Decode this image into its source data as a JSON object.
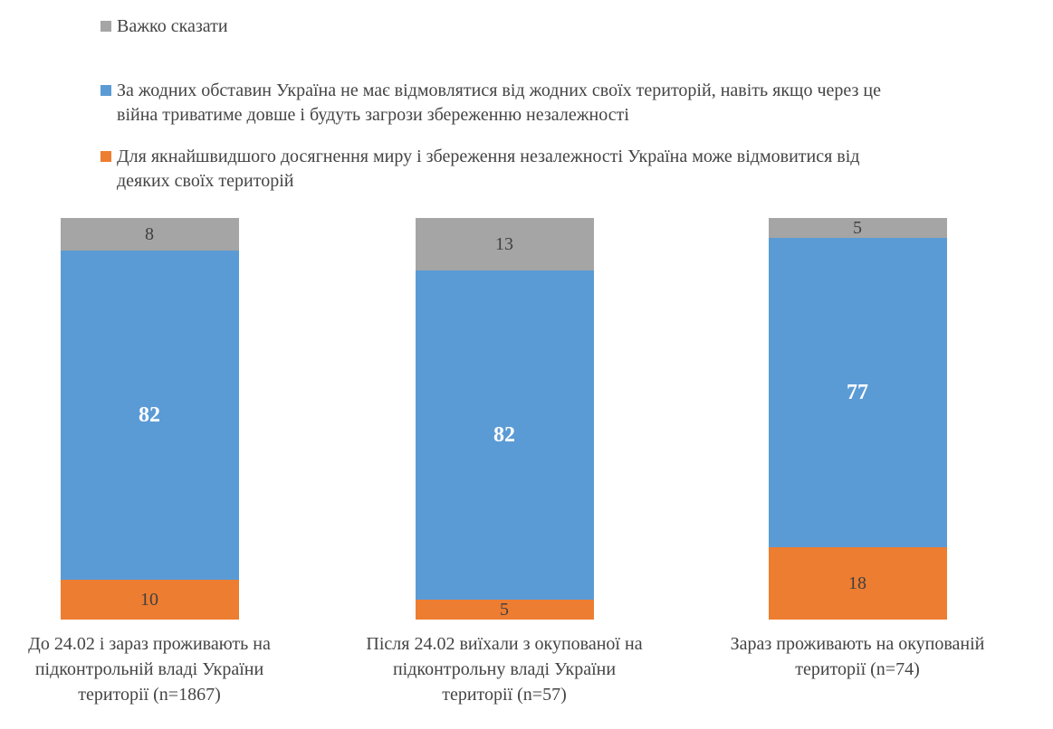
{
  "chart_data": {
    "type": "bar",
    "stacked": true,
    "orientation": "vertical",
    "ylim": [
      0,
      100
    ],
    "grid": false,
    "axes_visible": false,
    "legend_position": "top-left",
    "categories": [
      "До 24.02 і зараз проживають на\nпідконтрольній владі України\nтериторії (n=1867)",
      "Після 24.02 виїхали з окупованої на\nпідконтрольну владі України\nтериторії (n=57)",
      "Зараз проживають на окупованій\nтериторії (n=74)"
    ],
    "series": [
      {
        "name": "Важко сказати",
        "color": "#A5A5A5",
        "values": [
          8,
          13,
          5
        ]
      },
      {
        "name": "За жодних обставин Україна не має відмовлятися від жодних своїх територій, навіть якщо через це\nвійна триватиме довше і будуть загрози збереженню незалежності",
        "color": "#5B9BD5",
        "values": [
          82,
          82,
          77
        ]
      },
      {
        "name": "Для якнайшвидшого досягнення миру і збереження незалежності Україна може відмовитися від\nдеяких своїх територій",
        "color": "#ED7D31",
        "values": [
          10,
          5,
          18
        ]
      }
    ]
  },
  "colors": {
    "gray": "#A5A5A5",
    "blue": "#5B9BD5",
    "orange": "#ED7D31",
    "text": "#444444",
    "value_text": "#404040",
    "blue_value_text": "#FFFFFF",
    "background": "#FFFFFF"
  }
}
